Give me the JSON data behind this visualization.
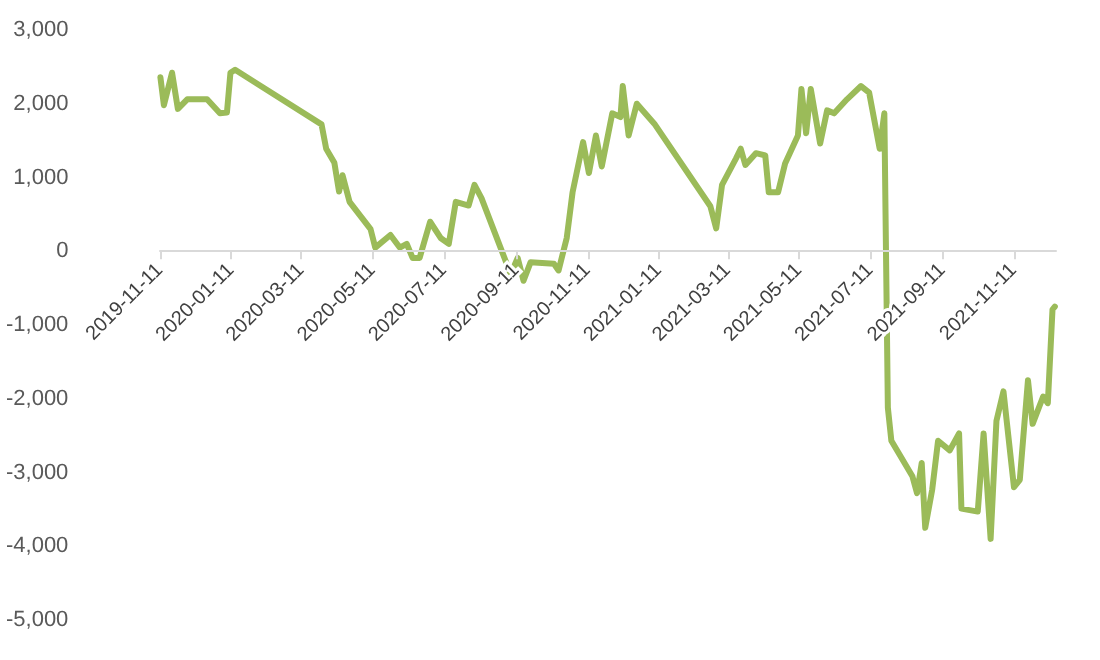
{
  "chart_data": {
    "type": "line",
    "x": [
      "2019-11-11",
      "2019-11-14",
      "2019-11-21",
      "2019-11-26",
      "2019-12-04",
      "2019-12-21",
      "2020-01-01",
      "2020-01-07",
      "2020-01-10",
      "2020-01-14",
      "2020-03-28",
      "2020-04-01",
      "2020-04-08",
      "2020-04-12",
      "2020-04-15",
      "2020-04-21",
      "2020-05-09",
      "2020-05-13",
      "2020-05-26",
      "2020-06-03",
      "2020-06-09",
      "2020-06-14",
      "2020-06-20",
      "2020-06-29",
      "2020-07-08",
      "2020-07-15",
      "2020-07-21",
      "2020-08-01",
      "2020-08-06",
      "2020-08-12",
      "2020-09-06",
      "2020-09-12",
      "2020-09-17",
      "2020-09-23",
      "2020-10-13",
      "2020-10-17",
      "2020-10-24",
      "2020-10-29",
      "2020-11-07",
      "2020-11-12",
      "2020-11-18",
      "2020-11-23",
      "2020-12-02",
      "2020-12-09",
      "2020-12-11",
      "2020-12-16",
      "2020-12-23",
      "2021-01-07",
      "2021-02-24",
      "2021-03-01",
      "2021-03-06",
      "2021-03-18",
      "2021-03-22",
      "2021-03-26",
      "2021-04-04",
      "2021-04-12",
      "2021-04-15",
      "2021-04-23",
      "2021-04-29",
      "2021-05-10",
      "2021-05-13",
      "2021-05-17",
      "2021-05-21",
      "2021-05-29",
      "2021-06-04",
      "2021-06-10",
      "2021-06-21",
      "2021-07-03",
      "2021-07-10",
      "2021-07-19",
      "2021-07-23",
      "2021-07-26",
      "2021-07-29",
      "2021-08-16",
      "2021-08-20",
      "2021-08-24",
      "2021-08-27",
      "2021-09-02",
      "2021-09-07",
      "2021-09-17",
      "2021-09-25",
      "2021-09-27",
      "2021-10-11",
      "2021-10-16",
      "2021-10-22",
      "2021-10-27",
      "2021-11-02",
      "2021-11-11",
      "2021-11-16",
      "2021-11-23",
      "2021-11-27",
      "2021-12-06",
      "2021-12-10",
      "2021-12-14",
      "2021-12-16"
    ],
    "series": [
      {
        "color": "#9bbb59",
        "values": [
          2360,
          1980,
          2420,
          1930,
          2060,
          2060,
          1870,
          1880,
          2420,
          2460,
          1720,
          1390,
          1200,
          810,
          1030,
          670,
          300,
          50,
          220,
          50,
          100,
          -90,
          -90,
          400,
          180,
          100,
          670,
          620,
          900,
          720,
          -310,
          -90,
          -400,
          -150,
          -170,
          -260,
          180,
          800,
          1480,
          1060,
          1570,
          1150,
          1870,
          1820,
          2240,
          1570,
          2000,
          1730,
          610,
          310,
          900,
          1260,
          1390,
          1170,
          1330,
          1300,
          800,
          800,
          1190,
          1570,
          2200,
          1600,
          2200,
          1460,
          1910,
          1870,
          2060,
          2240,
          2150,
          1390,
          1870,
          -2120,
          -2570,
          -3050,
          -3280,
          -2870,
          -3750,
          -3230,
          -2570,
          -2700,
          -2470,
          -3490,
          -3530,
          -2470,
          -3900,
          -2300,
          -1900,
          -3200,
          -3100,
          -1750,
          -2340,
          -1970,
          -2060,
          -790,
          -750
        ]
      }
    ],
    "xlim": [
      "2019-11-11",
      "2021-12-17"
    ],
    "xticks": [
      "2019-11-11",
      "2020-01-11",
      "2020-03-11",
      "2020-05-11",
      "2020-07-11",
      "2020-09-11",
      "2020-11-11",
      "2021-01-11",
      "2021-03-11",
      "2021-05-11",
      "2021-07-11",
      "2021-09-11",
      "2021-11-11"
    ],
    "ylim": [
      -5000,
      3000
    ],
    "yticks": [
      {
        "value": -5000,
        "label": "-5,000"
      },
      {
        "value": -4000,
        "label": "-4,000"
      },
      {
        "value": -3000,
        "label": "-3,000"
      },
      {
        "value": -2000,
        "label": "-2,000"
      },
      {
        "value": -1000,
        "label": "-1,000"
      },
      0,
      {
        "value": 1000,
        "label": "1,000"
      },
      {
        "value": 2000,
        "label": "2,000"
      },
      {
        "value": 3000,
        "label": "3,000"
      }
    ],
    "grid": false,
    "marker": "none",
    "line_style": "solid"
  }
}
